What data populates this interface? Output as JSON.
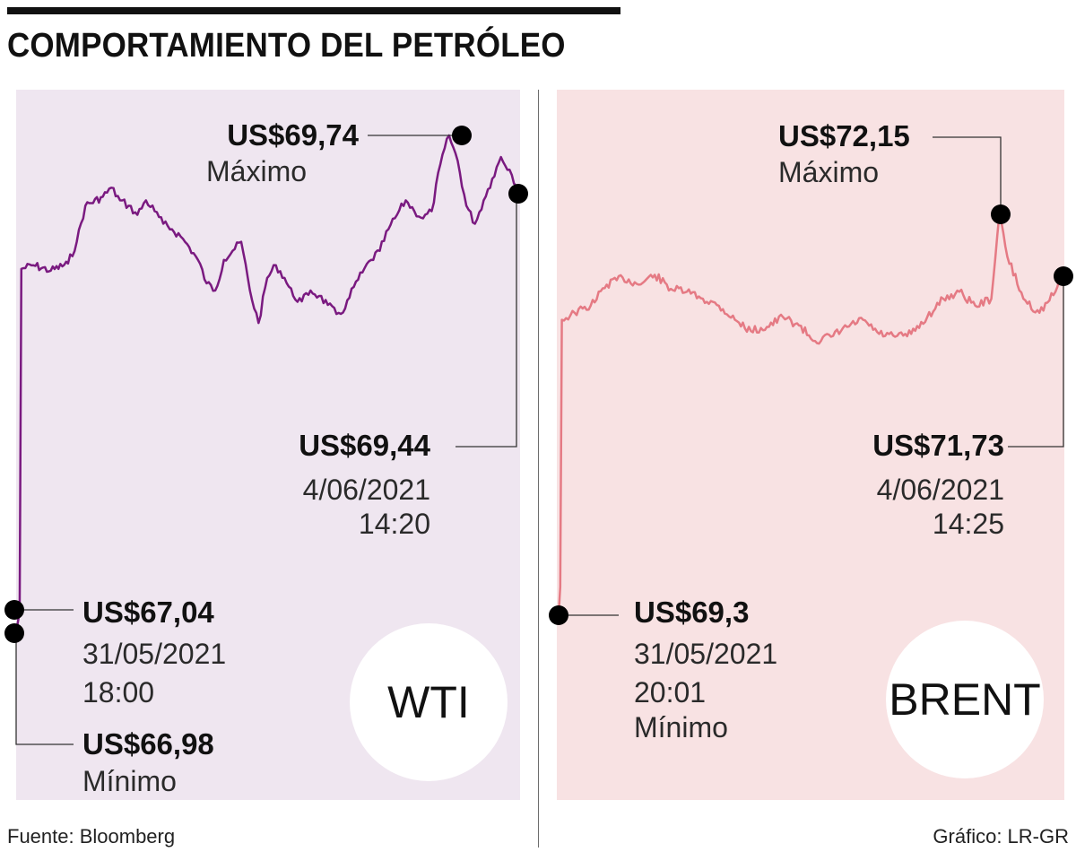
{
  "header": {
    "title": "COMPORTAMIENTO DEL PETRÓLEO"
  },
  "footer": {
    "source": "Fuente: Bloomberg",
    "credit": "Gráfico: LR-GR"
  },
  "colors": {
    "wti_line": "#7a1a80",
    "wti_fill": "#efe6f0",
    "brent_line": "#e57a84",
    "brent_fill": "#f8e2e3",
    "dot": "#000000"
  },
  "annotations": {
    "wti": {
      "max_value": "US$69,74",
      "max_label": "Máximo",
      "last_value": "US$69,44",
      "last_date": "4/06/2021",
      "last_time": "14:20",
      "first_value": "US$67,04",
      "first_date": "31/05/2021",
      "first_time": "18:00",
      "min_value": "US$66,98",
      "min_label": "Mínimo",
      "badge": "WTI"
    },
    "brent": {
      "max_value": "US$72,15",
      "max_label": "Máximo",
      "last_value": "US$71,73",
      "last_date": "4/06/2021",
      "last_time": "14:25",
      "first_value": "US$69,3",
      "first_date": "31/05/2021",
      "first_time": "20:01",
      "min_label": "Mínimo",
      "badge": "BRENT"
    }
  },
  "chart_data": [
    {
      "type": "area",
      "name": "WTI",
      "ylim": [
        66.9,
        69.9
      ],
      "points": [
        [
          0,
          66.98
        ],
        [
          0.2,
          67.04
        ],
        [
          0.4,
          67.1
        ],
        [
          0.6,
          69.0
        ],
        [
          2,
          69.02
        ],
        [
          4,
          68.99
        ],
        [
          6,
          69.03
        ],
        [
          7,
          69.15
        ],
        [
          8,
          69.35
        ],
        [
          10,
          69.4
        ],
        [
          11,
          69.45
        ],
        [
          12,
          69.38
        ],
        [
          13,
          69.35
        ],
        [
          14,
          69.3
        ],
        [
          15,
          69.38
        ],
        [
          16,
          69.32
        ],
        [
          17,
          69.25
        ],
        [
          18,
          69.22
        ],
        [
          19,
          69.18
        ],
        [
          20,
          69.12
        ],
        [
          21,
          69.05
        ],
        [
          22,
          68.92
        ],
        [
          23,
          68.88
        ],
        [
          24,
          69.05
        ],
        [
          25,
          69.1
        ],
        [
          26,
          69.15
        ],
        [
          27,
          68.88
        ],
        [
          28,
          68.7
        ],
        [
          29,
          68.95
        ],
        [
          30,
          69.02
        ],
        [
          31,
          68.95
        ],
        [
          32,
          68.85
        ],
        [
          33,
          68.82
        ],
        [
          34,
          68.88
        ],
        [
          35,
          68.85
        ],
        [
          36,
          68.8
        ],
        [
          37,
          68.75
        ],
        [
          38,
          68.78
        ],
        [
          39,
          68.9
        ],
        [
          40,
          68.98
        ],
        [
          41,
          69.05
        ],
        [
          42,
          69.1
        ],
        [
          43,
          69.22
        ],
        [
          44,
          69.3
        ],
        [
          45,
          69.38
        ],
        [
          46,
          69.32
        ],
        [
          47,
          69.28
        ],
        [
          48,
          69.32
        ],
        [
          49,
          69.58
        ],
        [
          50,
          69.74
        ],
        [
          51,
          69.6
        ],
        [
          52,
          69.35
        ],
        [
          53,
          69.25
        ],
        [
          54,
          69.38
        ],
        [
          55,
          69.5
        ],
        [
          56,
          69.62
        ],
        [
          57,
          69.55
        ],
        [
          58,
          69.44
        ]
      ]
    },
    {
      "type": "area",
      "name": "BRENT",
      "ylim": [
        69.2,
        72.3
      ],
      "points": [
        [
          0,
          69.3
        ],
        [
          0.2,
          69.5
        ],
        [
          0.4,
          71.4
        ],
        [
          2,
          71.45
        ],
        [
          4,
          71.5
        ],
        [
          6,
          71.65
        ],
        [
          8,
          71.7
        ],
        [
          10,
          71.65
        ],
        [
          12,
          71.72
        ],
        [
          14,
          71.62
        ],
        [
          16,
          71.6
        ],
        [
          18,
          71.55
        ],
        [
          20,
          71.5
        ],
        [
          22,
          71.4
        ],
        [
          24,
          71.32
        ],
        [
          26,
          71.35
        ],
        [
          28,
          71.42
        ],
        [
          30,
          71.36
        ],
        [
          32,
          71.25
        ],
        [
          34,
          71.28
        ],
        [
          36,
          71.35
        ],
        [
          38,
          71.4
        ],
        [
          40,
          71.3
        ],
        [
          42,
          71.28
        ],
        [
          44,
          71.3
        ],
        [
          46,
          71.42
        ],
        [
          48,
          71.55
        ],
        [
          50,
          71.6
        ],
        [
          52,
          71.5
        ],
        [
          54,
          71.55
        ],
        [
          55,
          72.15
        ],
        [
          56,
          71.85
        ],
        [
          58,
          71.55
        ],
        [
          60,
          71.45
        ],
        [
          62,
          71.6
        ],
        [
          63,
          71.73
        ]
      ]
    }
  ]
}
